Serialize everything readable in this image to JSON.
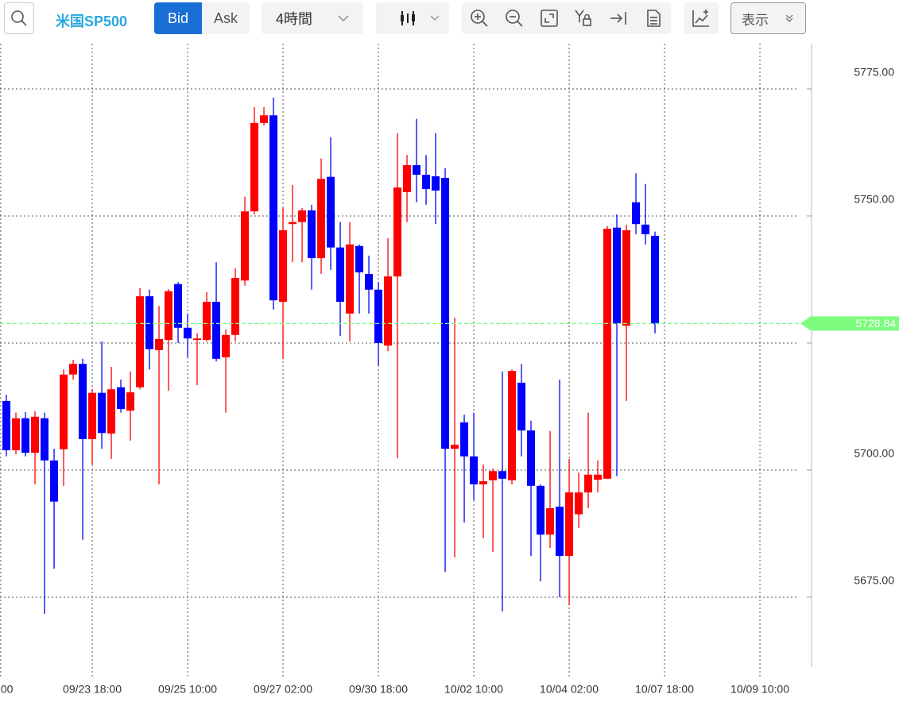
{
  "toolbar": {
    "symbol": "米国SP500",
    "bid": "Bid",
    "ask": "Ask",
    "timeframe": "4時間",
    "display": "表示"
  },
  "chart_data": {
    "type": "candlestick",
    "up_color": "#ff0000",
    "down_color": "#0000ff",
    "open": [
      5713.6,
      5703.9,
      5710.2,
      5703.4,
      5710.2,
      5701.9,
      5704.1,
      5718.8,
      5720.9,
      5706.1,
      5715.2,
      5707.2,
      5716.3,
      5711.7,
      5716.3,
      5734.2,
      5723.6,
      5725.6,
      5736.6,
      5728.0,
      5725.6,
      5725.6,
      5733.1,
      5722.2,
      5726.6,
      5737.3,
      5750.9,
      5768.3,
      5769.8,
      5733.1,
      5748.4,
      5748.8,
      5751.1,
      5741.7,
      5757.7,
      5743.8,
      5730.8,
      5744.1,
      5738.6,
      5735.5,
      5724.5,
      5738.1,
      5754.7,
      5760.0,
      5758.1,
      5757.8,
      5757.5,
      5704.2,
      5709.4,
      5702.7,
      5697.2,
      5698.0,
      5699.8,
      5698.0,
      5717.2,
      5707.8,
      5696.9,
      5687.3,
      5692.8,
      5683.1,
      5691.3,
      5695.6,
      5698.1,
      5698.3,
      5747.7,
      5728.4,
      5752.7,
      5748.3,
      5746.1
    ],
    "high": [
      5714.8,
      5711.3,
      5711.4,
      5711.6,
      5711.3,
      5704.2,
      5719.8,
      5721.7,
      5721.9,
      5715.9,
      5725.3,
      5720.3,
      5717.8,
      5719.4,
      5735.8,
      5735.5,
      5732.3,
      5735.6,
      5737.0,
      5730.8,
      5726.9,
      5735.0,
      5740.9,
      5727.7,
      5739.7,
      5753.8,
      5771.4,
      5771.4,
      5773.3,
      5751.6,
      5756.1,
      5751.6,
      5752.2,
      5761.3,
      5765.5,
      5748.8,
      5748.8,
      5744.4,
      5742.2,
      5737.0,
      5745.6,
      5766.3,
      5762.0,
      5769.1,
      5762.0,
      5766.3,
      5759.4,
      5730.0,
      5710.9,
      5711.3,
      5701.1,
      5700.3,
      5719.4,
      5719.8,
      5720.9,
      5709.7,
      5697.2,
      5707.7,
      5717.8,
      5702.2,
      5699.5,
      5711.3,
      5701.9,
      5748.0,
      5750.3,
      5748.3,
      5758.4,
      5756.3,
      5746.9
    ],
    "low": [
      5702.7,
      5703.1,
      5702.7,
      5697.2,
      5671.7,
      5680.6,
      5696.9,
      5717.8,
      5686.3,
      5701.1,
      5704.2,
      5702.2,
      5711.3,
      5705.8,
      5715.9,
      5719.8,
      5697.2,
      5715.6,
      5725.0,
      5722.2,
      5716.7,
      5725.3,
      5721.4,
      5711.3,
      5725.3,
      5736.3,
      5750.3,
      5767.8,
      5731.6,
      5721.9,
      5740.9,
      5740.9,
      5735.5,
      5738.6,
      5739.4,
      5726.4,
      5725.3,
      5730.8,
      5730.8,
      5720.6,
      5723.4,
      5702.3,
      5748.8,
      5752.7,
      5752.2,
      5748.4,
      5680.0,
      5682.8,
      5689.7,
      5694.1,
      5686.6,
      5683.9,
      5672.2,
      5697.2,
      5702.7,
      5683.1,
      5678.1,
      5684.7,
      5675.0,
      5673.4,
      5688.6,
      5692.5,
      5695.6,
      5698.3,
      5698.8,
      5713.6,
      5746.4,
      5744.4,
      5726.9
    ],
    "close": [
      5703.9,
      5710.2,
      5703.4,
      5710.5,
      5701.9,
      5693.8,
      5718.8,
      5720.9,
      5706.1,
      5715.2,
      5707.3,
      5715.9,
      5712.0,
      5715.3,
      5734.2,
      5723.8,
      5725.8,
      5735.2,
      5728.0,
      5725.9,
      5725.9,
      5733.1,
      5721.9,
      5726.6,
      5737.8,
      5750.9,
      5768.3,
      5769.8,
      5733.4,
      5747.2,
      5748.8,
      5751.1,
      5741.7,
      5757.3,
      5743.8,
      5733.1,
      5744.4,
      5738.9,
      5735.5,
      5725.0,
      5738.1,
      5755.6,
      5760.0,
      5758.1,
      5755.3,
      5755.0,
      5704.2,
      5705.0,
      5702.7,
      5697.2,
      5697.8,
      5699.8,
      5698.3,
      5719.5,
      5707.8,
      5696.9,
      5687.3,
      5692.5,
      5683.1,
      5695.6,
      5695.6,
      5699.1,
      5699.1,
      5747.5,
      5728.8,
      5747.2,
      5748.4,
      5746.4,
      5728.8
    ],
    "last_price": 5728.84,
    "last_price_color": "#7dfc7d",
    "xlim": [
      -0.67,
      83.08
    ],
    "xticks": [
      {
        "value": -0.6,
        "label": "00"
      },
      {
        "value": 9,
        "label": "09/23 18:00"
      },
      {
        "value": 19,
        "label": "09/25 10:00"
      },
      {
        "value": 29,
        "label": "09/27 02:00"
      },
      {
        "value": 39,
        "label": "09/30 18:00"
      },
      {
        "value": 49,
        "label": "10/02 10:00"
      },
      {
        "value": 59,
        "label": "10/04 02:00"
      },
      {
        "value": 69,
        "label": "10/07 18:00"
      },
      {
        "value": 79,
        "label": "10/09 10:00"
      }
    ],
    "ylim": [
      5658.9,
      5783.9
    ],
    "yticks": [
      {
        "value": 5675,
        "label": "5675.00"
      },
      {
        "value": 5700,
        "label": "5700.00"
      },
      {
        "value": 5725,
        "label": "5725.00"
      },
      {
        "value": 5750,
        "label": "5750.00"
      },
      {
        "value": 5775,
        "label": "5775.00"
      }
    ],
    "grid": true
  }
}
